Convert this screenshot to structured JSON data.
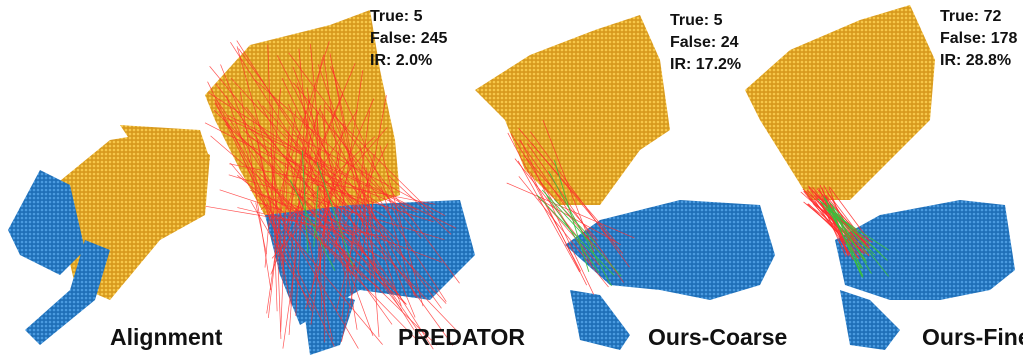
{
  "colors": {
    "source_cloud": "#e5ad2b",
    "target_cloud": "#2f86d4",
    "false_match": "#ff2a2a",
    "true_match": "#3bbf3b",
    "text": "#111111"
  },
  "panels": [
    {
      "id": "alignment",
      "caption": "Alignment"
    },
    {
      "id": "predator",
      "caption": "PREDATOR",
      "stats": {
        "true": "True: 5",
        "false": "False: 245",
        "ir": "IR: 2.0%"
      },
      "counts": {
        "true": 5,
        "false": 245,
        "ir_percent": 2.0
      }
    },
    {
      "id": "ours-coarse",
      "caption": "Ours-Coarse",
      "stats": {
        "true": "True: 5",
        "false": "False: 24",
        "ir": "IR: 17.2%"
      },
      "counts": {
        "true": 5,
        "false": 24,
        "ir_percent": 17.2
      }
    },
    {
      "id": "ours-fine",
      "caption": "Ours-Fine",
      "stats": {
        "true": "True: 72",
        "false": "False: 178",
        "ir": "IR: 28.8%"
      },
      "counts": {
        "true": 72,
        "false": 178,
        "ir_percent": 28.8
      }
    }
  ]
}
